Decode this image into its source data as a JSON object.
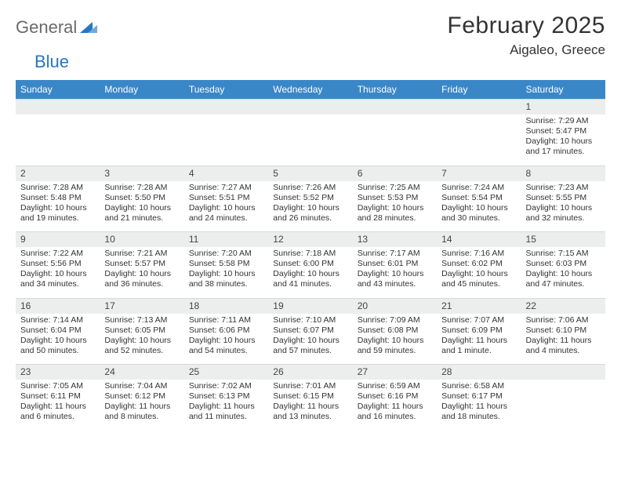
{
  "brand": {
    "name_gray": "General",
    "name_blue": "Blue"
  },
  "title": "February 2025",
  "location": "Aigaleo, Greece",
  "header_bg": "#3a87c8",
  "daynum_bg": "#eceded",
  "days_of_week": [
    "Sunday",
    "Monday",
    "Tuesday",
    "Wednesday",
    "Thursday",
    "Friday",
    "Saturday"
  ],
  "weeks": [
    [
      null,
      null,
      null,
      null,
      null,
      null,
      {
        "n": "1",
        "sr": "Sunrise: 7:29 AM",
        "ss": "Sunset: 5:47 PM",
        "dl": "Daylight: 10 hours and 17 minutes."
      }
    ],
    [
      {
        "n": "2",
        "sr": "Sunrise: 7:28 AM",
        "ss": "Sunset: 5:48 PM",
        "dl": "Daylight: 10 hours and 19 minutes."
      },
      {
        "n": "3",
        "sr": "Sunrise: 7:28 AM",
        "ss": "Sunset: 5:50 PM",
        "dl": "Daylight: 10 hours and 21 minutes."
      },
      {
        "n": "4",
        "sr": "Sunrise: 7:27 AM",
        "ss": "Sunset: 5:51 PM",
        "dl": "Daylight: 10 hours and 24 minutes."
      },
      {
        "n": "5",
        "sr": "Sunrise: 7:26 AM",
        "ss": "Sunset: 5:52 PM",
        "dl": "Daylight: 10 hours and 26 minutes."
      },
      {
        "n": "6",
        "sr": "Sunrise: 7:25 AM",
        "ss": "Sunset: 5:53 PM",
        "dl": "Daylight: 10 hours and 28 minutes."
      },
      {
        "n": "7",
        "sr": "Sunrise: 7:24 AM",
        "ss": "Sunset: 5:54 PM",
        "dl": "Daylight: 10 hours and 30 minutes."
      },
      {
        "n": "8",
        "sr": "Sunrise: 7:23 AM",
        "ss": "Sunset: 5:55 PM",
        "dl": "Daylight: 10 hours and 32 minutes."
      }
    ],
    [
      {
        "n": "9",
        "sr": "Sunrise: 7:22 AM",
        "ss": "Sunset: 5:56 PM",
        "dl": "Daylight: 10 hours and 34 minutes."
      },
      {
        "n": "10",
        "sr": "Sunrise: 7:21 AM",
        "ss": "Sunset: 5:57 PM",
        "dl": "Daylight: 10 hours and 36 minutes."
      },
      {
        "n": "11",
        "sr": "Sunrise: 7:20 AM",
        "ss": "Sunset: 5:58 PM",
        "dl": "Daylight: 10 hours and 38 minutes."
      },
      {
        "n": "12",
        "sr": "Sunrise: 7:18 AM",
        "ss": "Sunset: 6:00 PM",
        "dl": "Daylight: 10 hours and 41 minutes."
      },
      {
        "n": "13",
        "sr": "Sunrise: 7:17 AM",
        "ss": "Sunset: 6:01 PM",
        "dl": "Daylight: 10 hours and 43 minutes."
      },
      {
        "n": "14",
        "sr": "Sunrise: 7:16 AM",
        "ss": "Sunset: 6:02 PM",
        "dl": "Daylight: 10 hours and 45 minutes."
      },
      {
        "n": "15",
        "sr": "Sunrise: 7:15 AM",
        "ss": "Sunset: 6:03 PM",
        "dl": "Daylight: 10 hours and 47 minutes."
      }
    ],
    [
      {
        "n": "16",
        "sr": "Sunrise: 7:14 AM",
        "ss": "Sunset: 6:04 PM",
        "dl": "Daylight: 10 hours and 50 minutes."
      },
      {
        "n": "17",
        "sr": "Sunrise: 7:13 AM",
        "ss": "Sunset: 6:05 PM",
        "dl": "Daylight: 10 hours and 52 minutes."
      },
      {
        "n": "18",
        "sr": "Sunrise: 7:11 AM",
        "ss": "Sunset: 6:06 PM",
        "dl": "Daylight: 10 hours and 54 minutes."
      },
      {
        "n": "19",
        "sr": "Sunrise: 7:10 AM",
        "ss": "Sunset: 6:07 PM",
        "dl": "Daylight: 10 hours and 57 minutes."
      },
      {
        "n": "20",
        "sr": "Sunrise: 7:09 AM",
        "ss": "Sunset: 6:08 PM",
        "dl": "Daylight: 10 hours and 59 minutes."
      },
      {
        "n": "21",
        "sr": "Sunrise: 7:07 AM",
        "ss": "Sunset: 6:09 PM",
        "dl": "Daylight: 11 hours and 1 minute."
      },
      {
        "n": "22",
        "sr": "Sunrise: 7:06 AM",
        "ss": "Sunset: 6:10 PM",
        "dl": "Daylight: 11 hours and 4 minutes."
      }
    ],
    [
      {
        "n": "23",
        "sr": "Sunrise: 7:05 AM",
        "ss": "Sunset: 6:11 PM",
        "dl": "Daylight: 11 hours and 6 minutes."
      },
      {
        "n": "24",
        "sr": "Sunrise: 7:04 AM",
        "ss": "Sunset: 6:12 PM",
        "dl": "Daylight: 11 hours and 8 minutes."
      },
      {
        "n": "25",
        "sr": "Sunrise: 7:02 AM",
        "ss": "Sunset: 6:13 PM",
        "dl": "Daylight: 11 hours and 11 minutes."
      },
      {
        "n": "26",
        "sr": "Sunrise: 7:01 AM",
        "ss": "Sunset: 6:15 PM",
        "dl": "Daylight: 11 hours and 13 minutes."
      },
      {
        "n": "27",
        "sr": "Sunrise: 6:59 AM",
        "ss": "Sunset: 6:16 PM",
        "dl": "Daylight: 11 hours and 16 minutes."
      },
      {
        "n": "28",
        "sr": "Sunrise: 6:58 AM",
        "ss": "Sunset: 6:17 PM",
        "dl": "Daylight: 11 hours and 18 minutes."
      },
      null
    ]
  ]
}
